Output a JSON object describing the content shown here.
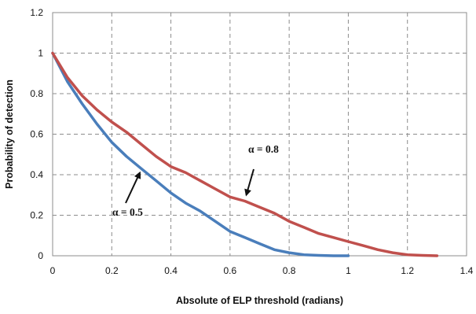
{
  "chart_data": {
    "type": "line",
    "title": "",
    "xlabel": "Absolute of ELP threshold  (radians)",
    "ylabel": "Probability of detection",
    "xlim": [
      0,
      1.4
    ],
    "ylim": [
      0,
      1.2
    ],
    "x_ticks": [
      "0",
      "0.2",
      "0.4",
      "0.6",
      "0.8",
      "1",
      "1.2",
      "1.4"
    ],
    "y_ticks": [
      "0",
      "0.2",
      "0.4",
      "0.6",
      "0.8",
      "1",
      "1.2"
    ],
    "grid": true,
    "grid_style": "dashed",
    "legend": "none",
    "series": [
      {
        "color": "#4a7ebb",
        "x": [
          0,
          0.05,
          0.1,
          0.15,
          0.2,
          0.25,
          0.3,
          0.35,
          0.4,
          0.45,
          0.5,
          0.55,
          0.6,
          0.65,
          0.7,
          0.75,
          0.8,
          0.85,
          0.9,
          0.95,
          1.0
        ],
        "y": [
          1.0,
          0.86,
          0.75,
          0.65,
          0.56,
          0.49,
          0.43,
          0.37,
          0.31,
          0.26,
          0.22,
          0.17,
          0.12,
          0.09,
          0.06,
          0.03,
          0.015,
          0.005,
          0.002,
          0.0,
          0.0
        ]
      },
      {
        "color": "#c0504d",
        "x": [
          0,
          0.05,
          0.1,
          0.15,
          0.2,
          0.25,
          0.3,
          0.35,
          0.4,
          0.45,
          0.5,
          0.55,
          0.6,
          0.65,
          0.7,
          0.75,
          0.8,
          0.85,
          0.9,
          0.95,
          1.0,
          1.05,
          1.1,
          1.15,
          1.2,
          1.25,
          1.3
        ],
        "y": [
          1.0,
          0.88,
          0.79,
          0.72,
          0.66,
          0.61,
          0.55,
          0.49,
          0.44,
          0.41,
          0.37,
          0.33,
          0.29,
          0.27,
          0.24,
          0.21,
          0.17,
          0.14,
          0.11,
          0.09,
          0.07,
          0.05,
          0.03,
          0.015,
          0.005,
          0.002,
          0.0
        ]
      }
    ],
    "annotations": [
      {
        "text": "α = 0.5",
        "arrow_to": [
          0.295,
          0.41
        ]
      },
      {
        "text": "α = 0.8",
        "arrow_to": [
          0.655,
          0.3
        ]
      }
    ]
  }
}
